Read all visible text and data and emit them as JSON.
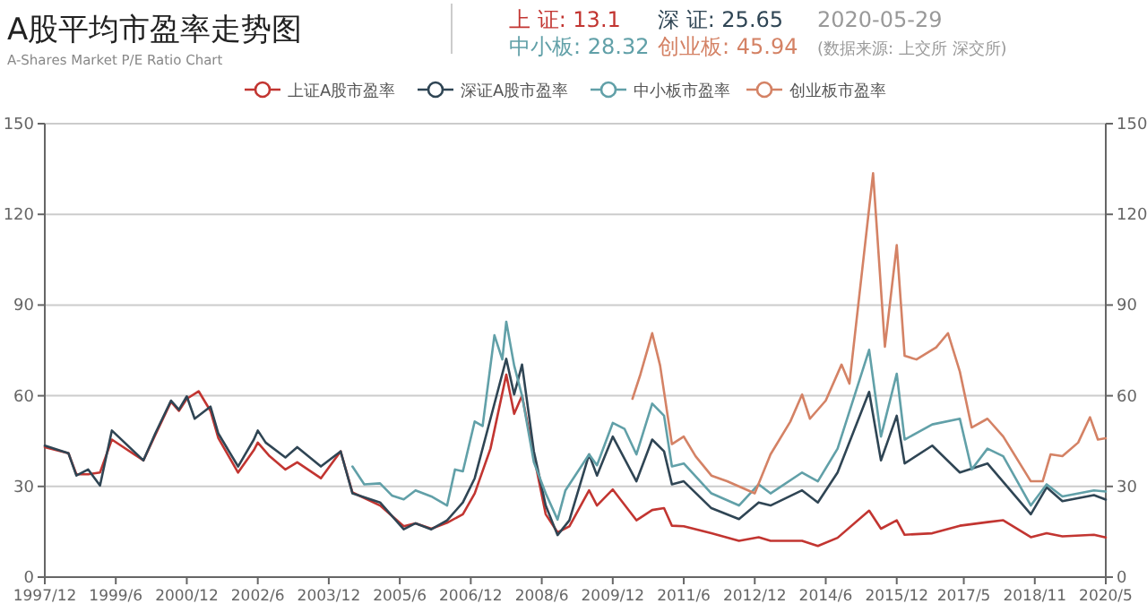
{
  "chart_data": {
    "type": "line",
    "title": "A股平均市盈率走势图",
    "subtitle": "A-Shares Market P/E Ratio Chart",
    "annotations": [
      "上 证: 13.1",
      "深 证: 25.65",
      "2020-05-29",
      "中小板: 28.32",
      "创业板: 45.94",
      "(数据来源: 上交所 深交所)"
    ],
    "legend": "top",
    "grid": "y",
    "marker": "none",
    "line_style": "solid",
    "xlim": [
      "1997-12",
      "2020-05"
    ],
    "xticks": [
      {
        "value": "1997-12",
        "label": "1997/12"
      },
      {
        "value": "1999-06",
        "label": "1999/6"
      },
      {
        "value": "2000-12",
        "label": "2000/12"
      },
      {
        "value": "2002-06",
        "label": "2002/6"
      },
      {
        "value": "2003-12",
        "label": "2003/12"
      },
      {
        "value": "2005-06",
        "label": "2005/6"
      },
      {
        "value": "2006-12",
        "label": "2006/12"
      },
      {
        "value": "2008-06",
        "label": "2008/6"
      },
      {
        "value": "2009-12",
        "label": "2009/12"
      },
      {
        "value": "2011-06",
        "label": "2011/6"
      },
      {
        "value": "2012-12",
        "label": "2012/12"
      },
      {
        "value": "2014-06",
        "label": "2014/6"
      },
      {
        "value": "2015-12",
        "label": "2015/12"
      },
      {
        "value": "2017-05",
        "label": "2017/5"
      },
      {
        "value": "2018-11",
        "label": "2018/11"
      },
      {
        "value": "2020-05",
        "label": "2020/5"
      }
    ],
    "ylim": [
      0,
      150
    ],
    "yticks": [
      0,
      30,
      60,
      90,
      120,
      150
    ],
    "y2lim": [
      0,
      150
    ],
    "y2ticks": [
      0,
      30,
      60,
      90,
      120,
      150
    ],
    "series": [
      {
        "name": "上证A股市盈率",
        "color": "#c23531",
        "x": [
          "1997-12",
          "1998-06",
          "1998-08",
          "1998-11",
          "1999-02",
          "1999-05",
          "2000-01",
          "2000-04",
          "2000-08",
          "2000-10",
          "2000-12",
          "2001-03",
          "2001-06",
          "2001-08",
          "2002-01",
          "2002-05",
          "2002-06",
          "2002-09",
          "2003-01",
          "2003-04",
          "2003-10",
          "2004-03",
          "2004-06",
          "2005-01",
          "2005-07",
          "2005-10",
          "2006-02",
          "2006-06",
          "2006-10",
          "2007-01",
          "2007-05",
          "2007-09",
          "2007-11",
          "2008-01",
          "2008-04",
          "2008-07",
          "2008-10",
          "2009-01",
          "2009-06",
          "2009-08",
          "2009-12",
          "2010-06",
          "2010-10",
          "2011-01",
          "2011-03",
          "2011-06",
          "2012-01",
          "2012-08",
          "2013-01",
          "2013-04",
          "2013-12",
          "2014-04",
          "2014-09",
          "2015-05",
          "2015-08",
          "2015-12",
          "2016-02",
          "2016-09",
          "2017-04",
          "2017-11",
          "2018-03",
          "2018-10",
          "2019-02",
          "2019-06",
          "2020-02",
          "2020-05"
        ],
        "values": [
          43,
          41,
          34,
          34,
          34.6,
          45.5,
          38.6,
          47,
          58,
          55,
          59,
          61.5,
          55,
          46,
          34.6,
          42,
          44.5,
          40,
          35.6,
          38,
          32.7,
          41.6,
          28,
          23.7,
          16.8,
          17.8,
          16,
          18,
          20.8,
          27.7,
          42.5,
          67,
          54,
          60,
          40,
          20.8,
          14.8,
          16.8,
          28.7,
          23.7,
          29,
          18.8,
          22.2,
          22.8,
          17,
          16.8,
          14.5,
          12,
          13.2,
          12,
          12,
          10.3,
          13,
          22,
          16,
          18.8,
          14,
          14.5,
          17,
          18.2,
          18.8,
          13.2,
          14.5,
          13.5,
          14,
          13.1
        ]
      },
      {
        "name": "深证A股市盈率",
        "color": "#2f4554",
        "x": [
          "1997-12",
          "1998-06",
          "1998-08",
          "1998-11",
          "1999-02",
          "1999-05",
          "2000-01",
          "2000-04",
          "2000-08",
          "2000-10",
          "2000-12",
          "2001-02",
          "2001-06",
          "2001-08",
          "2002-01",
          "2002-05",
          "2002-06",
          "2002-08",
          "2003-01",
          "2003-04",
          "2003-10",
          "2004-03",
          "2004-06",
          "2005-01",
          "2005-07",
          "2005-10",
          "2006-02",
          "2006-06",
          "2006-10",
          "2007-01",
          "2007-05",
          "2007-09",
          "2007-11",
          "2008-01",
          "2008-04",
          "2008-07",
          "2008-10",
          "2009-01",
          "2009-06",
          "2009-08",
          "2009-12",
          "2010-06",
          "2010-10",
          "2011-01",
          "2011-03",
          "2011-06",
          "2012-01",
          "2012-08",
          "2013-01",
          "2013-04",
          "2013-12",
          "2014-04",
          "2014-09",
          "2015-05",
          "2015-08",
          "2015-12",
          "2016-02",
          "2016-09",
          "2017-04",
          "2017-11",
          "2018-10",
          "2019-02",
          "2019-06",
          "2020-02",
          "2020-05"
        ],
        "values": [
          43.5,
          41,
          33.6,
          35.6,
          30.3,
          48.5,
          38.6,
          47.5,
          58.4,
          55.4,
          59.8,
          52.4,
          56.4,
          47.5,
          36.6,
          45.5,
          48.5,
          44.5,
          39.6,
          43,
          36.6,
          41.6,
          27.7,
          24.7,
          15.8,
          17.8,
          15.8,
          18.8,
          24.7,
          32.7,
          52.4,
          72.2,
          60.4,
          70.3,
          41.6,
          23.7,
          13.9,
          18.8,
          40.6,
          33.6,
          46.5,
          31.7,
          45.5,
          41.6,
          30.7,
          31.7,
          22.8,
          19.2,
          24.7,
          23.7,
          28.7,
          24.7,
          34.6,
          61.3,
          38.6,
          53.4,
          37.6,
          43.5,
          34.6,
          37.6,
          20.8,
          29.7,
          25.1,
          27.1,
          25.65
        ]
      },
      {
        "name": "中小板市盈率",
        "color": "#61a0a8",
        "x": [
          "2004-06",
          "2004-09",
          "2005-01",
          "2005-04",
          "2005-07",
          "2005-10",
          "2006-02",
          "2006-06",
          "2006-08",
          "2006-10",
          "2007-01",
          "2007-03",
          "2007-06",
          "2007-08",
          "2007-09",
          "2007-11",
          "2008-01",
          "2008-04",
          "2008-07",
          "2008-10",
          "2008-12",
          "2009-06",
          "2009-08",
          "2009-12",
          "2010-03",
          "2010-06",
          "2010-10",
          "2011-01",
          "2011-03",
          "2011-06",
          "2012-01",
          "2012-08",
          "2013-01",
          "2013-04",
          "2013-12",
          "2014-04",
          "2014-09",
          "2015-05",
          "2015-08",
          "2015-12",
          "2016-02",
          "2016-09",
          "2017-04",
          "2017-07",
          "2017-11",
          "2018-03",
          "2018-10",
          "2019-02",
          "2019-06",
          "2020-02",
          "2020-05"
        ],
        "values": [
          36.6,
          30.7,
          31,
          27,
          25.7,
          28.7,
          26.7,
          23.7,
          35.6,
          35,
          51.5,
          50,
          80,
          72,
          84.5,
          70,
          60,
          38,
          27.7,
          19,
          28.7,
          40.6,
          37,
          51,
          49,
          40.6,
          57.4,
          53.4,
          36.6,
          37.6,
          27.7,
          23.7,
          30.7,
          27.7,
          34.6,
          31.7,
          42.5,
          75.2,
          46.5,
          67.3,
          45.5,
          50.5,
          52.4,
          35.6,
          42.5,
          40,
          23.7,
          30.7,
          26.7,
          28.7,
          28.32
        ]
      },
      {
        "name": "创业板市盈率",
        "color": "#d48265",
        "x": [
          "2010-05",
          "2010-07",
          "2010-10",
          "2010-12",
          "2011-03",
          "2011-06",
          "2011-09",
          "2012-01",
          "2012-05",
          "2012-12",
          "2013-04",
          "2013-09",
          "2013-12",
          "2014-02",
          "2014-06",
          "2014-10",
          "2014-12",
          "2015-06",
          "2015-09",
          "2015-12",
          "2016-02",
          "2016-05",
          "2016-10",
          "2017-01",
          "2017-04",
          "2017-07",
          "2017-11",
          "2018-03",
          "2018-10",
          "2019-01",
          "2019-03",
          "2019-06",
          "2019-10",
          "2020-01",
          "2020-03",
          "2020-05"
        ],
        "values": [
          59,
          67,
          80.7,
          70,
          44,
          46.5,
          40,
          33.6,
          31.7,
          27.7,
          40.6,
          51.4,
          60.4,
          52.4,
          58.4,
          70.3,
          64,
          133.6,
          76.2,
          109.8,
          73.2,
          72,
          76,
          80.7,
          68,
          49.5,
          52.4,
          46.5,
          31.7,
          31.7,
          40.6,
          40,
          44.5,
          52.9,
          45.5,
          45.94
        ]
      }
    ]
  }
}
